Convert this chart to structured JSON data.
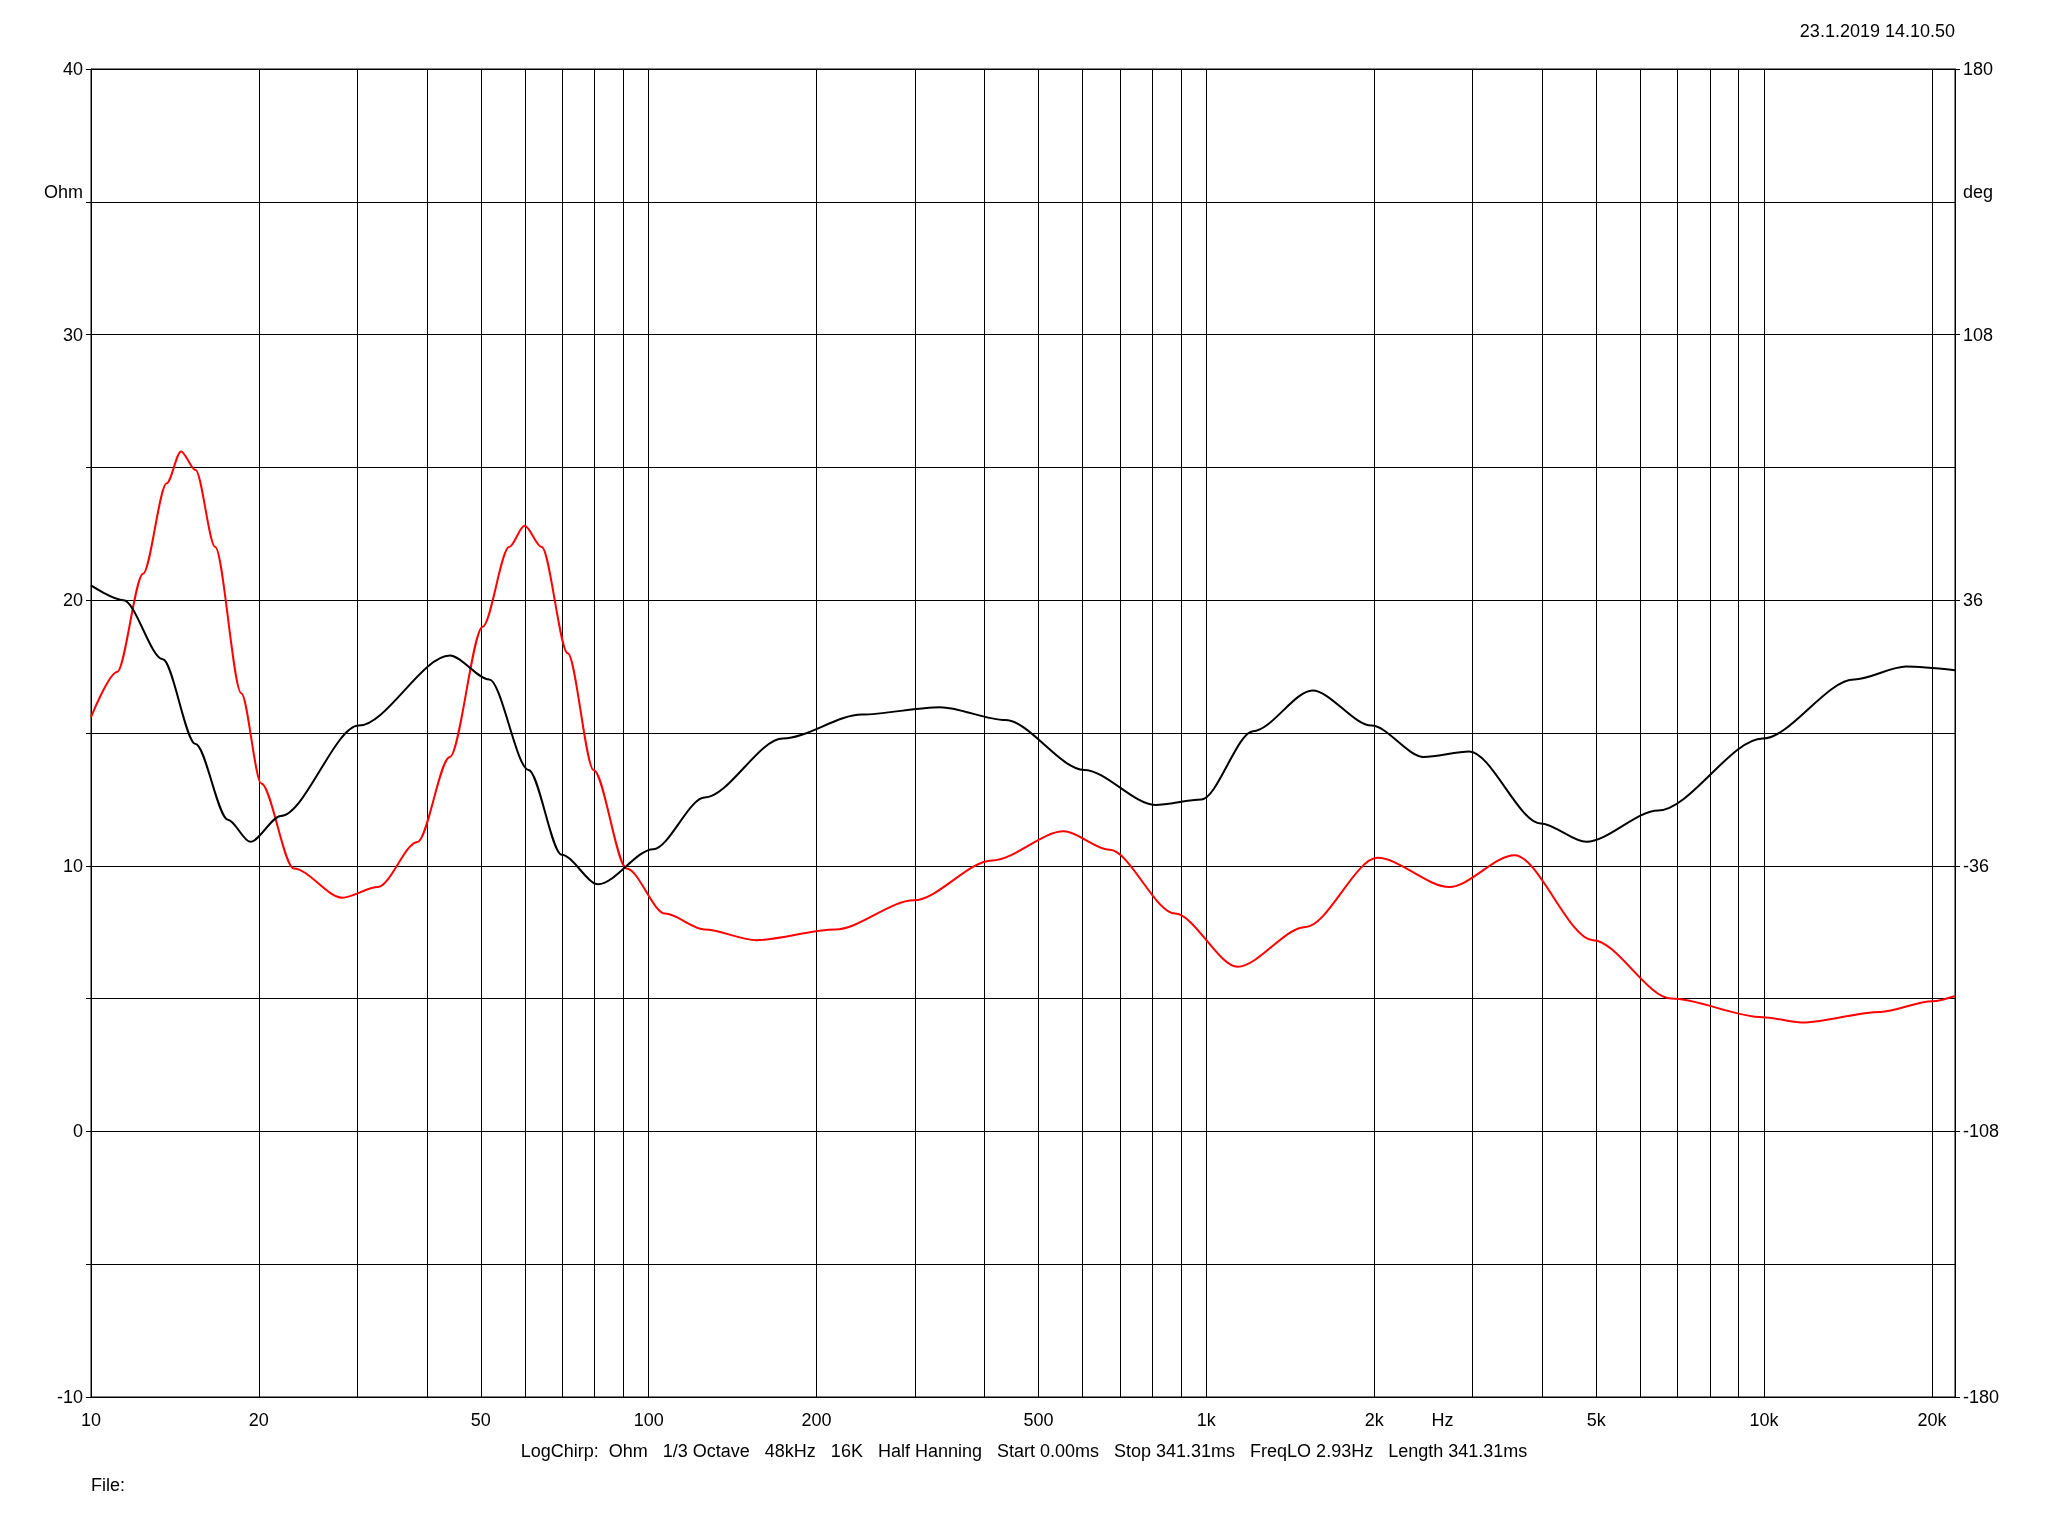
{
  "chart_data": {
    "type": "line",
    "xlabel": "Hz",
    "ylabel": "Ohm",
    "y2label": "deg",
    "annotations": [
      "23.1.2019 14.10.50",
      "LogChirp:  Ohm   1/3 Octave   48kHz   16K   Half Hanning   Start 0.00ms   Stop 341.31ms   FreqLO 2.93Hz   Length 341.31ms",
      "File:"
    ],
    "log": "x",
    "grid": true,
    "marker": "none",
    "line_style": "solid",
    "xlim": [
      10,
      22000
    ],
    "xticks": [
      10,
      20,
      {
        "value": 30,
        "label": null
      },
      {
        "value": 40,
        "label": null
      },
      50,
      {
        "value": 60,
        "label": null
      },
      {
        "value": 70,
        "label": null
      },
      {
        "value": 80,
        "label": null
      },
      {
        "value": 90,
        "label": null
      },
      100,
      200,
      {
        "value": 300,
        "label": null
      },
      {
        "value": 400,
        "label": null
      },
      500,
      {
        "value": 600,
        "label": null
      },
      {
        "value": 700,
        "label": null
      },
      {
        "value": 800,
        "label": null
      },
      {
        "value": 900,
        "label": null
      },
      {
        "value": 1000,
        "label": "1k"
      },
      {
        "value": 2000,
        "label": "2k"
      },
      {
        "value": 3000,
        "label": null
      },
      {
        "value": 4000,
        "label": null
      },
      {
        "value": 5000,
        "label": "5k"
      },
      {
        "value": 6000,
        "label": null
      },
      {
        "value": 7000,
        "label": null
      },
      {
        "value": 8000,
        "label": null
      },
      {
        "value": 9000,
        "label": null
      },
      {
        "value": 10000,
        "label": "10k"
      },
      {
        "value": 20000,
        "label": "20k"
      }
    ],
    "ylim": [
      -10,
      40
    ],
    "yticks": [
      -10,
      {
        "value": -5,
        "label": null
      },
      0,
      {
        "value": 5,
        "label": null
      },
      10,
      {
        "value": 15,
        "label": null
      },
      20,
      {
        "value": 25,
        "label": null
      },
      30,
      {
        "value": 35,
        "label": null
      },
      40
    ],
    "y2lim": [
      -180,
      180
    ],
    "y2ticks": [
      -180,
      -108,
      -36,
      36,
      108,
      180
    ],
    "series": [
      {
        "color": "#ff0000",
        "x": [
          10,
          11.14,
          12.4,
          13.67,
          14.5,
          15.4,
          16.7,
          18.6,
          20.2,
          23.1,
          28.2,
          32.7,
          38.5,
          44.0,
          50.4,
          56.2,
          59.9,
          64.3,
          71.6,
          79.7,
          91.3,
          107,
          126,
          156,
          216,
          299,
          413,
          555,
          671,
          879,
          1138,
          1507,
          2026,
          2727,
          3570,
          4934,
          6818,
          9947,
          11693,
          16160,
          20045,
          22000
        ],
        "values": [
          15.6,
          17.3,
          21.0,
          24.4,
          25.6,
          24.9,
          22.0,
          16.5,
          13.1,
          9.9,
          8.8,
          9.2,
          10.9,
          14.1,
          19.0,
          22.0,
          22.8,
          22.0,
          18.0,
          13.6,
          9.9,
          8.2,
          7.6,
          7.2,
          7.6,
          8.7,
          10.2,
          11.3,
          10.6,
          8.2,
          6.2,
          7.7,
          10.3,
          9.2,
          10.4,
          7.2,
          5.0,
          4.3,
          4.1,
          4.5,
          4.9,
          5.1
        ]
      },
      {
        "color": "#000000",
        "axis": "y2",
        "x": [
          10,
          11.44,
          13.45,
          15.4,
          17.6,
          19.3,
          21.9,
          30.2,
          44.0,
          51.8,
          60.9,
          69.8,
          81.2,
          101.9,
          126,
          174,
          241,
          333,
          436,
          604,
          810,
          980,
          1213,
          1550,
          1978,
          2453,
          2962,
          3976,
          4802,
          6460,
          9947,
          14510,
          17980,
          22000
        ],
        "values": [
          40,
          36,
          20,
          -3,
          -23.5,
          -29.5,
          -22.5,
          2,
          21,
          14.5,
          -10,
          -33,
          -41,
          -31.5,
          -17.5,
          -1.5,
          5,
          7,
          3.5,
          -10,
          -19.5,
          -18,
          0.5,
          11.5,
          2,
          -6.5,
          -5,
          -24.5,
          -29.5,
          -21,
          -1.5,
          14.5,
          18,
          17
        ]
      }
    ]
  }
}
